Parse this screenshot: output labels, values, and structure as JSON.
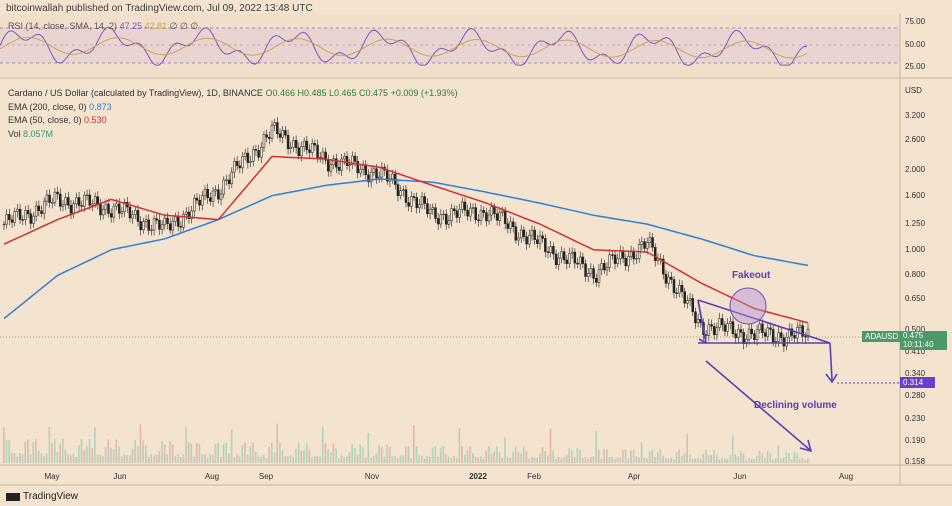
{
  "header": "bitcoinwallah published on TradingView.com, Jul 09, 2022 13:48 UTC",
  "rsi": {
    "label": "RSI (14, close, SMA, 14, 2)",
    "value": "47.25",
    "sma_value": "42.81",
    "dots": "∅ ∅ ∅",
    "ticks": [
      "75.00",
      "50.00",
      "25.00"
    ]
  },
  "legend": {
    "symbol": "Cardano / US Dollar (calculated by TradingView), 1D, BINANCE",
    "ohlc": "O0.466 H0.485 L0.465 C0.475 +0.009 (+1.93%)",
    "ema200_label": "EMA (200, close, 0)",
    "ema200_value": "0.873",
    "ema50_label": "EMA (50, close, 0)",
    "ema50_value": "0.530",
    "vol_label": "Vol",
    "vol_value": "8.057M"
  },
  "price_axis": {
    "currency": "USD",
    "ticks": [
      "3.200",
      "2.600",
      "2.000",
      "1.600",
      "1.250",
      "1.000",
      "0.800",
      "0.650",
      "0.500",
      "0.410",
      "0.340",
      "0.280",
      "0.230",
      "0.190",
      "0.158"
    ]
  },
  "price_label": {
    "pair": "ADAUSD",
    "price": "0.475",
    "countdown": "10:11:40"
  },
  "target_label": "0.314",
  "annotations": {
    "fakeout": "Fakeout",
    "declining_volume": "Declining volume"
  },
  "x_axis": [
    "May",
    "Jun",
    "Aug",
    "Sep",
    "Nov",
    "2022",
    "Feb",
    "Apr",
    "Jun",
    "Aug"
  ],
  "brand": "TradingView",
  "colors": {
    "ema200": "#2f7fd6",
    "ema50": "#d03030",
    "up": "#222222",
    "down": "#222222",
    "rsi": "#7e57c2",
    "annotation": "#5a3fb5",
    "price_tag": "#4c9a6a"
  },
  "chart_data": {
    "type": "candlestick",
    "title": "Cardano / US Dollar (calculated by TradingView), 1D, BINANCE",
    "ylabel": "USD",
    "y_scale": "log",
    "ylim": [
      0.158,
      3.2
    ],
    "x": [
      "2021-04",
      "2021-05",
      "2021-06",
      "2021-07",
      "2021-08",
      "2021-09",
      "2021-10",
      "2021-11",
      "2021-12",
      "2022-01",
      "2022-02",
      "2022-03",
      "2022-04",
      "2022-05",
      "2022-06",
      "2022-07"
    ],
    "series": [
      {
        "name": "ADAUSD close",
        "values": [
          1.25,
          1.55,
          1.45,
          1.2,
          1.7,
          2.8,
          2.2,
          1.95,
          1.35,
          1.4,
          1.05,
          0.82,
          1.05,
          0.52,
          0.48,
          0.475
        ]
      },
      {
        "name": "EMA (200, close, 0)",
        "values": [
          0.55,
          0.8,
          1.0,
          1.1,
          1.3,
          1.6,
          1.75,
          1.85,
          1.8,
          1.65,
          1.5,
          1.35,
          1.25,
          1.1,
          0.95,
          0.873
        ]
      },
      {
        "name": "EMA (50, close, 0)",
        "values": [
          1.05,
          1.3,
          1.55,
          1.35,
          1.3,
          2.25,
          2.2,
          2.05,
          1.75,
          1.5,
          1.25,
          1.0,
          0.98,
          0.75,
          0.6,
          0.53
        ]
      }
    ],
    "current": {
      "open": 0.466,
      "high": 0.485,
      "low": 0.465,
      "close": 0.475,
      "change": 0.009,
      "change_pct": 1.93
    },
    "target": 0.314,
    "rsi": {
      "value": 47.25,
      "sma": 42.81,
      "levels": [
        75,
        50,
        25
      ]
    }
  }
}
